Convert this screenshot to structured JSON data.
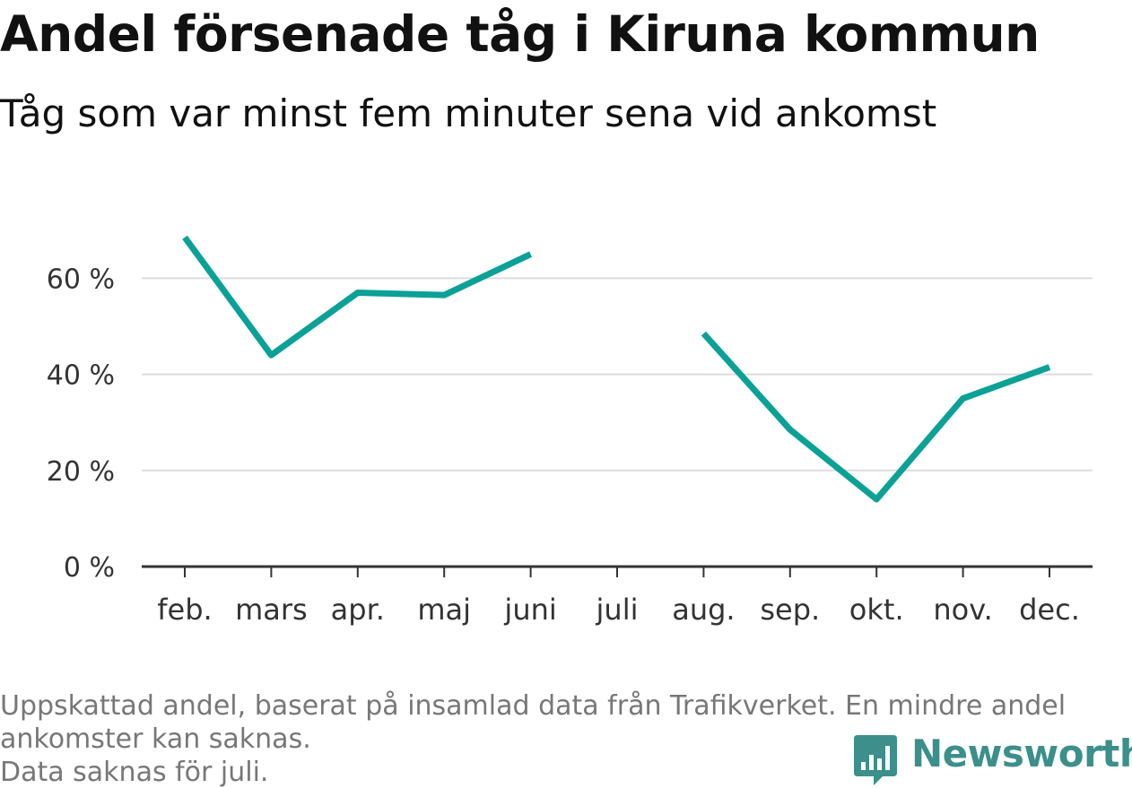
{
  "title": "Andel försenade tåg i Kiruna kommun",
  "subtitle": "Tåg som var minst fem minuter sena vid ankomst",
  "footnote": {
    "line1": "Uppskattad andel, baserat på insamlad data från Trafikverket. En mindre andel",
    "line2": "ankomster kan saknas.",
    "line3": "Data saknas för juli."
  },
  "brand": {
    "name": "Newsworthy",
    "color": "#3c8f8a",
    "icon": "newsworthy-logo-icon"
  },
  "chart_data": {
    "type": "line",
    "categories": [
      "feb.",
      "mars",
      "apr.",
      "maj",
      "juni",
      "juli",
      "aug.",
      "sep.",
      "okt.",
      "nov.",
      "dec."
    ],
    "series": [
      {
        "values": [
          68.5,
          44,
          57,
          56.5,
          65,
          null,
          48.5,
          28.5,
          14,
          35,
          41.5
        ],
        "color": "#0ba196"
      }
    ],
    "ylim": [
      0,
      75
    ],
    "yticks": [
      0,
      20,
      40,
      60
    ],
    "ytick_labels": [
      "0 %",
      "20 %",
      "40 %",
      "60 %"
    ],
    "xlabel": "",
    "ylabel": "",
    "grid": true,
    "gridColor": "#dddddd",
    "axisColor": "#333333"
  }
}
